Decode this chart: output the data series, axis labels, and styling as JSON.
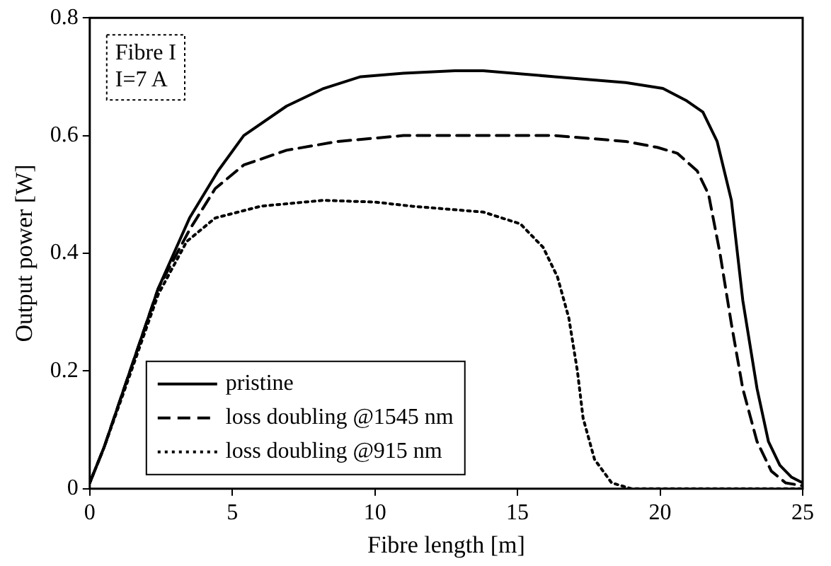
{
  "chart_data": {
    "type": "line",
    "xlabel": "Fibre length [m]",
    "ylabel": "Output power [W]",
    "xlim": [
      0,
      25
    ],
    "xticks": [
      0,
      5,
      10,
      15,
      20,
      25
    ],
    "ylim": [
      0,
      0.8
    ],
    "yticks": [
      0,
      0.2,
      0.4,
      0.6,
      0.8
    ],
    "grid": false,
    "legend": "bottom left",
    "marker": "none",
    "annotations": [
      "Fibre I",
      "I=7 A"
    ],
    "series": [
      {
        "name": "pristine",
        "color": "#000000",
        "line_style": "solid",
        "x": [
          0,
          0.5,
          1.2,
          2.4,
          3.5,
          4.5,
          5.4,
          6.9,
          8.2,
          9.5,
          11,
          12.8,
          13.8,
          16.3,
          18.8,
          20.1,
          20.9,
          21.5,
          22,
          22.5,
          22.9,
          23.4,
          23.8,
          24.2,
          24.6,
          25
        ],
        "values": [
          0.01,
          0.07,
          0.17,
          0.34,
          0.46,
          0.54,
          0.6,
          0.65,
          0.68,
          0.7,
          0.706,
          0.71,
          0.71,
          0.7,
          0.69,
          0.68,
          0.66,
          0.64,
          0.59,
          0.49,
          0.32,
          0.17,
          0.08,
          0.04,
          0.02,
          0.01
        ]
      },
      {
        "name": "loss doubling @1545 nm",
        "color": "#000000",
        "line_style": "dashed",
        "x": [
          0,
          0.5,
          1.2,
          2.4,
          3.5,
          4.4,
          5.4,
          6.9,
          8.7,
          11,
          13,
          16.3,
          18.8,
          19.9,
          20.6,
          21.3,
          21.7,
          22.1,
          22.5,
          22.9,
          23.4,
          23.9,
          24.4,
          25
        ],
        "values": [
          0.01,
          0.07,
          0.17,
          0.34,
          0.44,
          0.51,
          0.55,
          0.575,
          0.59,
          0.6,
          0.6,
          0.6,
          0.59,
          0.58,
          0.57,
          0.54,
          0.5,
          0.4,
          0.28,
          0.17,
          0.08,
          0.03,
          0.01,
          0.005
        ]
      },
      {
        "name": "loss doubling @915 nm",
        "color": "#000000",
        "line_style": "dotted",
        "x": [
          0,
          0.5,
          1.2,
          2.4,
          3.4,
          4.4,
          6,
          8.2,
          10,
          11.3,
          13.8,
          15.1,
          15.9,
          16.4,
          16.8,
          17.1,
          17.3,
          17.7,
          18.3,
          19,
          25
        ],
        "values": [
          0.01,
          0.07,
          0.165,
          0.33,
          0.42,
          0.46,
          0.48,
          0.49,
          0.487,
          0.48,
          0.47,
          0.45,
          0.41,
          0.36,
          0.29,
          0.2,
          0.12,
          0.05,
          0.01,
          0,
          0
        ]
      }
    ]
  }
}
